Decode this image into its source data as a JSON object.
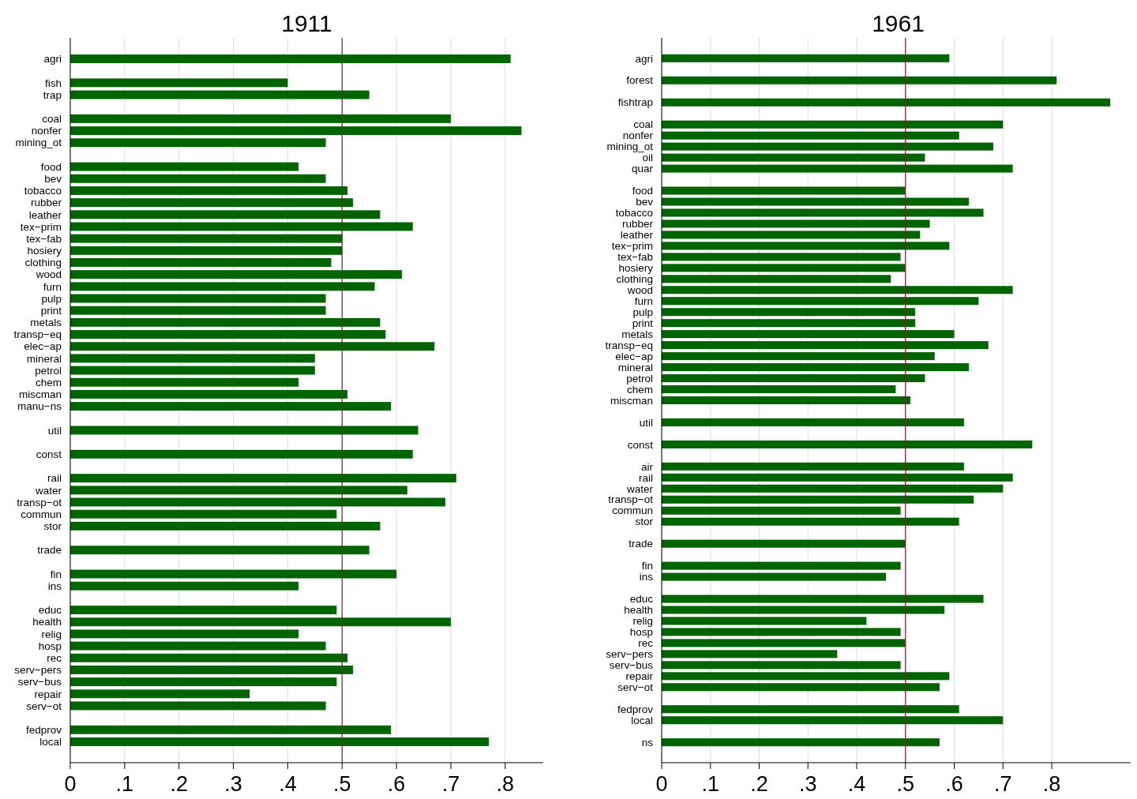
{
  "chart_data": [
    {
      "type": "bar",
      "orientation": "horizontal",
      "title": "1911",
      "categories": [
        "agri",
        null,
        "fish",
        "trap",
        null,
        "coal",
        "nonfer",
        "mining_ot",
        null,
        "food",
        "bev",
        "tobacco",
        "rubber",
        "leather",
        "tex−prim",
        "tex−fab",
        "hosiery",
        "clothing",
        "wood",
        "furn",
        "pulp",
        "print",
        "metals",
        "transp−eq",
        "elec−ap",
        "mineral",
        "petrol",
        "chem",
        "miscman",
        "manu−ns",
        null,
        "util",
        null,
        "const",
        null,
        "rail",
        "water",
        "transp−ot",
        "commun",
        "stor",
        null,
        "trade",
        null,
        "fin",
        "ins",
        null,
        "educ",
        "health",
        "relig",
        "hosp",
        "rec",
        "serv−pers",
        "serv−bus",
        "repair",
        "serv−ot",
        null,
        "fedprov",
        "local"
      ],
      "values": [
        0.81,
        null,
        0.4,
        0.55,
        null,
        0.7,
        0.83,
        0.47,
        null,
        0.42,
        0.47,
        0.51,
        0.52,
        0.57,
        0.63,
        0.5,
        0.5,
        0.48,
        0.61,
        0.56,
        0.47,
        0.47,
        0.57,
        0.58,
        0.67,
        0.45,
        0.45,
        0.42,
        0.51,
        0.59,
        null,
        0.64,
        null,
        0.63,
        null,
        0.71,
        0.62,
        0.69,
        0.49,
        0.57,
        null,
        0.55,
        null,
        0.6,
        0.42,
        null,
        0.49,
        0.7,
        0.42,
        0.47,
        0.51,
        0.52,
        0.49,
        0.33,
        0.47,
        null,
        0.59,
        0.77
      ],
      "color": "#006400",
      "xlim": [
        0,
        0.87
      ],
      "xticks": [
        0,
        {
          "value": 0.1,
          "label": ".1"
        },
        {
          "value": 0.2,
          "label": ".2"
        },
        {
          "value": 0.3,
          "label": ".3"
        },
        {
          "value": 0.4,
          "label": ".4"
        },
        {
          "value": 0.5,
          "label": ".5"
        },
        {
          "value": 0.6,
          "label": ".6"
        },
        {
          "value": 0.7,
          "label": ".7"
        },
        {
          "value": 0.8,
          "label": ".8"
        }
      ],
      "grid": "x",
      "ref_lines": [
        {
          "axis": "x",
          "value": 0.5,
          "color": "#8b1a3a"
        }
      ]
    },
    {
      "type": "bar",
      "orientation": "horizontal",
      "title": "1961",
      "categories": [
        "agri",
        null,
        "forest",
        null,
        "fishtrap",
        null,
        "coal",
        "nonfer",
        "mining_ot",
        "oil",
        "quar",
        null,
        "food",
        "bev",
        "tobacco",
        "rubber",
        "leather",
        "tex−prim",
        "tex−fab",
        "hosiery",
        "clothing",
        "wood",
        "furn",
        "pulp",
        "print",
        "metals",
        "transp−eq",
        "elec−ap",
        "mineral",
        "petrol",
        "chem",
        "miscman",
        null,
        "util",
        null,
        "const",
        null,
        "air",
        "rail",
        "water",
        "transp−ot",
        "commun",
        "stor",
        null,
        "trade",
        null,
        "fin",
        "ins",
        null,
        "educ",
        "health",
        "relig",
        "hosp",
        "rec",
        "serv−pers",
        "serv−bus",
        "repair",
        "serv−ot",
        null,
        "fedprov",
        "local",
        null,
        "ns"
      ],
      "values": [
        0.59,
        null,
        0.81,
        null,
        0.92,
        null,
        0.7,
        0.61,
        0.68,
        0.54,
        0.72,
        null,
        0.5,
        0.63,
        0.66,
        0.55,
        0.53,
        0.59,
        0.49,
        0.5,
        0.47,
        0.72,
        0.65,
        0.52,
        0.52,
        0.6,
        0.67,
        0.56,
        0.63,
        0.54,
        0.48,
        0.51,
        null,
        0.62,
        null,
        0.76,
        null,
        0.62,
        0.72,
        0.7,
        0.64,
        0.49,
        0.61,
        null,
        0.5,
        null,
        0.49,
        0.46,
        null,
        0.66,
        0.58,
        0.42,
        0.49,
        0.5,
        0.36,
        0.49,
        0.59,
        0.57,
        null,
        0.61,
        0.7,
        null,
        0.57
      ],
      "color": "#006400",
      "xlim": [
        0,
        0.97
      ],
      "xticks": [
        0,
        {
          "value": 0.1,
          "label": ".1"
        },
        {
          "value": 0.2,
          "label": ".2"
        },
        {
          "value": 0.3,
          "label": ".3"
        },
        {
          "value": 0.4,
          "label": ".4"
        },
        {
          "value": 0.5,
          "label": ".5"
        },
        {
          "value": 0.6,
          "label": ".6"
        },
        {
          "value": 0.7,
          "label": ".7"
        },
        {
          "value": 0.8,
          "label": ".8"
        }
      ],
      "grid": "x",
      "ref_lines": [
        {
          "axis": "x",
          "value": 0.5,
          "color": "#8b1a3a"
        }
      ]
    }
  ]
}
